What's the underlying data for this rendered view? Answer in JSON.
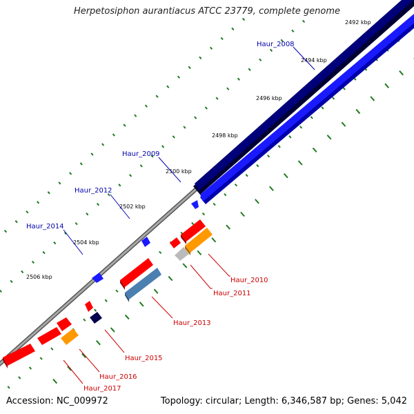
{
  "title": "Herpetosiphon aurantiacus ATCC 23779, complete genome",
  "footer": {
    "accession": "Accession: NC_009972",
    "summary": "Topology: circular; Length: 6,346,587 bp; Genes: 5,042"
  },
  "scale_labels": [
    "2492 kbp",
    "2494 kbp",
    "2496 kbp",
    "2498 kbp",
    "2500 kbp",
    "2502 kbp",
    "2504 kbp",
    "2506 kbp"
  ],
  "forward_genes": [
    "Haur_2008",
    "Haur_2009",
    "Haur_2012",
    "Haur_2014"
  ],
  "reverse_genes": [
    "Haur_2010",
    "Haur_2011",
    "Haur_2013",
    "Haur_2015",
    "Haur_2016",
    "Haur_2017"
  ],
  "colors": {
    "forward_label": "#0000aa",
    "reverse_label": "#cc0000",
    "backbone": "#888888",
    "tick": "#1e7a1e",
    "dark_blue": "#00007a",
    "blue": "#1a1aff",
    "red": "#ff0000",
    "orange": "#ff9900",
    "steel": "#4a7fb0",
    "grey": "#bbbbbb",
    "navy": "#00004d"
  }
}
